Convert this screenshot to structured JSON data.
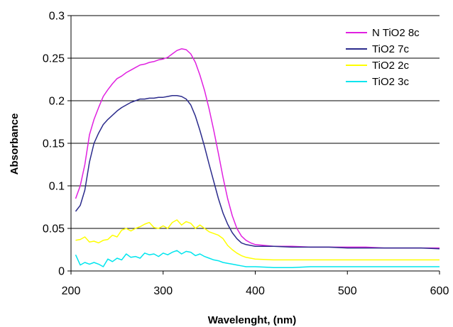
{
  "chart_data": {
    "type": "line",
    "title": "",
    "xlabel": "Wavelenght, (nm)",
    "ylabel": "Absorbance",
    "xlim": [
      200,
      600
    ],
    "ylim": [
      0,
      0.3
    ],
    "x_ticks": [
      "200",
      "300",
      "400",
      "500",
      "600"
    ],
    "y_ticks": [
      "0",
      "0.05",
      "0.1",
      "0.15",
      "0.2",
      "0.25",
      "0.3"
    ],
    "grid": "horizontal",
    "legend_position": "top-right",
    "series": [
      {
        "name": "N TiO2 8c",
        "color": "#e020e0",
        "points": [
          [
            205,
            0.085
          ],
          [
            210,
            0.1
          ],
          [
            215,
            0.125
          ],
          [
            220,
            0.16
          ],
          [
            225,
            0.178
          ],
          [
            230,
            0.192
          ],
          [
            235,
            0.205
          ],
          [
            240,
            0.213
          ],
          [
            245,
            0.22
          ],
          [
            250,
            0.226
          ],
          [
            255,
            0.229
          ],
          [
            260,
            0.233
          ],
          [
            265,
            0.236
          ],
          [
            270,
            0.239
          ],
          [
            275,
            0.242
          ],
          [
            280,
            0.243
          ],
          [
            285,
            0.245
          ],
          [
            290,
            0.246
          ],
          [
            295,
            0.248
          ],
          [
            300,
            0.249
          ],
          [
            305,
            0.251
          ],
          [
            310,
            0.255
          ],
          [
            315,
            0.259
          ],
          [
            320,
            0.261
          ],
          [
            325,
            0.26
          ],
          [
            330,
            0.255
          ],
          [
            335,
            0.245
          ],
          [
            340,
            0.23
          ],
          [
            345,
            0.212
          ],
          [
            350,
            0.19
          ],
          [
            355,
            0.165
          ],
          [
            360,
            0.138
          ],
          [
            365,
            0.11
          ],
          [
            370,
            0.085
          ],
          [
            375,
            0.065
          ],
          [
            380,
            0.05
          ],
          [
            385,
            0.041
          ],
          [
            390,
            0.036
          ],
          [
            395,
            0.033
          ],
          [
            400,
            0.031
          ],
          [
            410,
            0.03
          ],
          [
            420,
            0.029
          ],
          [
            440,
            0.029
          ],
          [
            460,
            0.028
          ],
          [
            480,
            0.028
          ],
          [
            500,
            0.028
          ],
          [
            520,
            0.028
          ],
          [
            540,
            0.027
          ],
          [
            560,
            0.027
          ],
          [
            580,
            0.027
          ],
          [
            600,
            0.027
          ]
        ]
      },
      {
        "name": "TiO2 7c",
        "color": "#2b2b8c",
        "points": [
          [
            205,
            0.07
          ],
          [
            210,
            0.077
          ],
          [
            215,
            0.095
          ],
          [
            220,
            0.128
          ],
          [
            225,
            0.15
          ],
          [
            230,
            0.162
          ],
          [
            235,
            0.172
          ],
          [
            240,
            0.178
          ],
          [
            245,
            0.183
          ],
          [
            250,
            0.188
          ],
          [
            255,
            0.192
          ],
          [
            260,
            0.195
          ],
          [
            265,
            0.198
          ],
          [
            270,
            0.2
          ],
          [
            275,
            0.202
          ],
          [
            280,
            0.202
          ],
          [
            285,
            0.203
          ],
          [
            290,
            0.203
          ],
          [
            295,
            0.204
          ],
          [
            300,
            0.204
          ],
          [
            305,
            0.205
          ],
          [
            310,
            0.206
          ],
          [
            315,
            0.206
          ],
          [
            320,
            0.205
          ],
          [
            325,
            0.202
          ],
          [
            330,
            0.195
          ],
          [
            335,
            0.182
          ],
          [
            340,
            0.165
          ],
          [
            345,
            0.146
          ],
          [
            350,
            0.125
          ],
          [
            355,
            0.105
          ],
          [
            360,
            0.085
          ],
          [
            365,
            0.068
          ],
          [
            370,
            0.055
          ],
          [
            375,
            0.045
          ],
          [
            380,
            0.038
          ],
          [
            385,
            0.033
          ],
          [
            390,
            0.031
          ],
          [
            395,
            0.03
          ],
          [
            400,
            0.029
          ],
          [
            420,
            0.029
          ],
          [
            440,
            0.028
          ],
          [
            460,
            0.028
          ],
          [
            480,
            0.028
          ],
          [
            500,
            0.027
          ],
          [
            520,
            0.027
          ],
          [
            540,
            0.027
          ],
          [
            560,
            0.027
          ],
          [
            580,
            0.027
          ],
          [
            600,
            0.026
          ]
        ]
      },
      {
        "name": "TiO2 2c",
        "color": "#ffff00",
        "points": [
          [
            205,
            0.036
          ],
          [
            210,
            0.037
          ],
          [
            215,
            0.04
          ],
          [
            220,
            0.034
          ],
          [
            225,
            0.035
          ],
          [
            230,
            0.033
          ],
          [
            235,
            0.036
          ],
          [
            240,
            0.037
          ],
          [
            245,
            0.042
          ],
          [
            250,
            0.04
          ],
          [
            255,
            0.048
          ],
          [
            260,
            0.05
          ],
          [
            265,
            0.047
          ],
          [
            270,
            0.05
          ],
          [
            275,
            0.052
          ],
          [
            280,
            0.055
          ],
          [
            285,
            0.057
          ],
          [
            290,
            0.051
          ],
          [
            295,
            0.05
          ],
          [
            300,
            0.053
          ],
          [
            305,
            0.05
          ],
          [
            310,
            0.057
          ],
          [
            315,
            0.06
          ],
          [
            320,
            0.054
          ],
          [
            325,
            0.058
          ],
          [
            330,
            0.056
          ],
          [
            335,
            0.05
          ],
          [
            340,
            0.054
          ],
          [
            345,
            0.05
          ],
          [
            350,
            0.046
          ],
          [
            355,
            0.044
          ],
          [
            360,
            0.042
          ],
          [
            365,
            0.038
          ],
          [
            370,
            0.03
          ],
          [
            375,
            0.025
          ],
          [
            380,
            0.021
          ],
          [
            385,
            0.018
          ],
          [
            390,
            0.016
          ],
          [
            395,
            0.015
          ],
          [
            400,
            0.014
          ],
          [
            420,
            0.013
          ],
          [
            440,
            0.013
          ],
          [
            460,
            0.013
          ],
          [
            480,
            0.013
          ],
          [
            500,
            0.013
          ],
          [
            520,
            0.013
          ],
          [
            540,
            0.013
          ],
          [
            560,
            0.013
          ],
          [
            580,
            0.013
          ],
          [
            600,
            0.013
          ]
        ]
      },
      {
        "name": "TiO2 3c",
        "color": "#00e5ee",
        "points": [
          [
            205,
            0.019
          ],
          [
            210,
            0.007
          ],
          [
            215,
            0.01
          ],
          [
            220,
            0.008
          ],
          [
            225,
            0.01
          ],
          [
            230,
            0.008
          ],
          [
            235,
            0.005
          ],
          [
            240,
            0.014
          ],
          [
            245,
            0.011
          ],
          [
            250,
            0.015
          ],
          [
            255,
            0.013
          ],
          [
            260,
            0.02
          ],
          [
            265,
            0.016
          ],
          [
            270,
            0.017
          ],
          [
            275,
            0.015
          ],
          [
            280,
            0.021
          ],
          [
            285,
            0.019
          ],
          [
            290,
            0.02
          ],
          [
            295,
            0.017
          ],
          [
            300,
            0.021
          ],
          [
            305,
            0.019
          ],
          [
            310,
            0.022
          ],
          [
            315,
            0.024
          ],
          [
            320,
            0.02
          ],
          [
            325,
            0.023
          ],
          [
            330,
            0.022
          ],
          [
            335,
            0.018
          ],
          [
            340,
            0.02
          ],
          [
            345,
            0.017
          ],
          [
            350,
            0.015
          ],
          [
            355,
            0.013
          ],
          [
            360,
            0.012
          ],
          [
            365,
            0.01
          ],
          [
            370,
            0.009
          ],
          [
            375,
            0.008
          ],
          [
            380,
            0.007
          ],
          [
            385,
            0.006
          ],
          [
            390,
            0.005
          ],
          [
            400,
            0.005
          ],
          [
            420,
            0.004
          ],
          [
            440,
            0.004
          ],
          [
            460,
            0.005
          ],
          [
            480,
            0.005
          ],
          [
            500,
            0.005
          ],
          [
            520,
            0.005
          ],
          [
            540,
            0.005
          ],
          [
            560,
            0.005
          ],
          [
            580,
            0.005
          ],
          [
            600,
            0.005
          ]
        ]
      }
    ]
  }
}
